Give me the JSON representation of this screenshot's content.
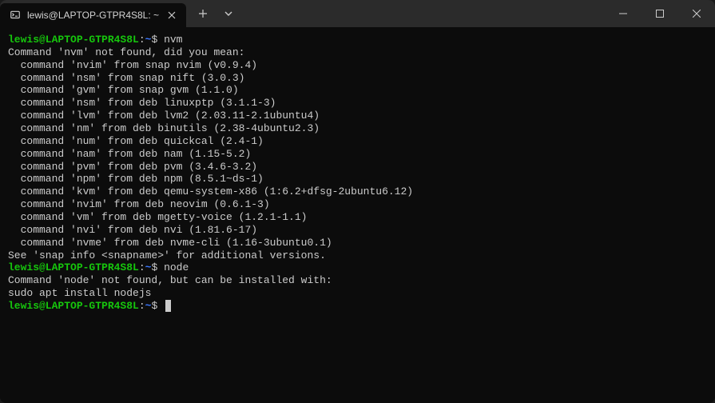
{
  "window": {
    "tab_title": "lewis@LAPTOP-GTPR4S8L: ~"
  },
  "colors": {
    "prompt_user": "#16c60c",
    "prompt_path": "#3b78ff",
    "background": "#0c0c0c",
    "titlebar": "#2b2b2b",
    "text": "#cccccc"
  },
  "session": [
    {
      "type": "prompt",
      "user": "lewis@LAPTOP-GTPR4S8L",
      "sep": ":",
      "path": "~",
      "sym": "$",
      "cmd": "nvm"
    },
    {
      "type": "out",
      "text": "Command 'nvm' not found, did you mean:"
    },
    {
      "type": "out",
      "text": "  command 'nvim' from snap nvim (v0.9.4)"
    },
    {
      "type": "out",
      "text": "  command 'nsm' from snap nift (3.0.3)"
    },
    {
      "type": "out",
      "text": "  command 'gvm' from snap gvm (1.1.0)"
    },
    {
      "type": "out",
      "text": "  command 'nsm' from deb linuxptp (3.1.1-3)"
    },
    {
      "type": "out",
      "text": "  command 'lvm' from deb lvm2 (2.03.11-2.1ubuntu4)"
    },
    {
      "type": "out",
      "text": "  command 'nm' from deb binutils (2.38-4ubuntu2.3)"
    },
    {
      "type": "out",
      "text": "  command 'num' from deb quickcal (2.4-1)"
    },
    {
      "type": "out",
      "text": "  command 'nam' from deb nam (1.15-5.2)"
    },
    {
      "type": "out",
      "text": "  command 'pvm' from deb pvm (3.4.6-3.2)"
    },
    {
      "type": "out",
      "text": "  command 'npm' from deb npm (8.5.1~ds-1)"
    },
    {
      "type": "out",
      "text": "  command 'kvm' from deb qemu-system-x86 (1:6.2+dfsg-2ubuntu6.12)"
    },
    {
      "type": "out",
      "text": "  command 'nvim' from deb neovim (0.6.1-3)"
    },
    {
      "type": "out",
      "text": "  command 'vm' from deb mgetty-voice (1.2.1-1.1)"
    },
    {
      "type": "out",
      "text": "  command 'nvi' from deb nvi (1.81.6-17)"
    },
    {
      "type": "out",
      "text": "  command 'nvme' from deb nvme-cli (1.16-3ubuntu0.1)"
    },
    {
      "type": "out",
      "text": "See 'snap info <snapname>' for additional versions."
    },
    {
      "type": "prompt",
      "user": "lewis@LAPTOP-GTPR4S8L",
      "sep": ":",
      "path": "~",
      "sym": "$",
      "cmd": "node"
    },
    {
      "type": "out",
      "text": "Command 'node' not found, but can be installed with:"
    },
    {
      "type": "out",
      "text": "sudo apt install nodejs"
    },
    {
      "type": "prompt",
      "user": "lewis@LAPTOP-GTPR4S8L",
      "sep": ":",
      "path": "~",
      "sym": "$",
      "cmd": "",
      "cursor": true
    }
  ]
}
